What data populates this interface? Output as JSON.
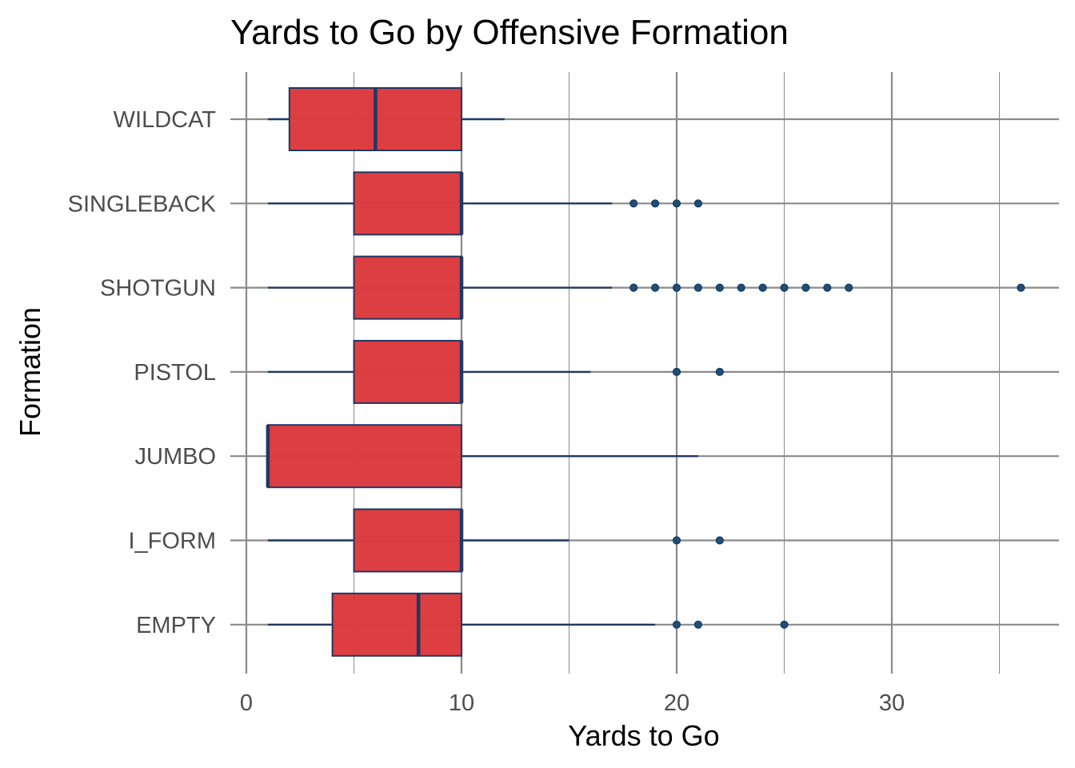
{
  "chart_data": {
    "type": "boxplot",
    "orientation": "horizontal",
    "title": "Yards to Go by Offensive Formation",
    "xlabel": "Yards to Go",
    "ylabel": "Formation",
    "xlim": [
      0,
      37.5
    ],
    "x_ticks": [
      0,
      10,
      20,
      30
    ],
    "x_tick_labels": [
      "0",
      "10",
      "20",
      "30"
    ],
    "grid": true,
    "legend": "none",
    "colors": {
      "box_fill": "#dc3a3d",
      "box_outline": "#1f3864",
      "grid": "#8a8a8a",
      "outlier": "#1f4e79"
    },
    "categories": [
      "EMPTY",
      "I_FORM",
      "JUMBO",
      "PISTOL",
      "SHOTGUN",
      "SINGLEBACK",
      "WILDCAT"
    ],
    "boxes": [
      {
        "category": "EMPTY",
        "whisker_low": 1,
        "q1": 4,
        "median": 8,
        "q3": 10,
        "whisker_high": 19,
        "outliers": [
          20,
          21,
          25
        ]
      },
      {
        "category": "I_FORM",
        "whisker_low": 1,
        "q1": 5,
        "median": 10,
        "q3": 10,
        "whisker_high": 15,
        "outliers": [
          20,
          22
        ]
      },
      {
        "category": "JUMBO",
        "whisker_low": 1,
        "q1": 1,
        "median": 1,
        "q3": 10,
        "whisker_high": 21,
        "outliers": []
      },
      {
        "category": "PISTOL",
        "whisker_low": 1,
        "q1": 5,
        "median": 10,
        "q3": 10,
        "whisker_high": 16,
        "outliers": [
          20,
          22
        ]
      },
      {
        "category": "SHOTGUN",
        "whisker_low": 1,
        "q1": 5,
        "median": 10,
        "q3": 10,
        "whisker_high": 17,
        "outliers": [
          18,
          19,
          20,
          21,
          22,
          23,
          24,
          25,
          26,
          27,
          28,
          36
        ]
      },
      {
        "category": "SINGLEBACK",
        "whisker_low": 1,
        "q1": 5,
        "median": 10,
        "q3": 10,
        "whisker_high": 17,
        "outliers": [
          18,
          19,
          20,
          21
        ]
      },
      {
        "category": "WILDCAT",
        "whisker_low": 1,
        "q1": 2,
        "median": 6,
        "q3": 10,
        "whisker_high": 12,
        "outliers": []
      }
    ]
  }
}
